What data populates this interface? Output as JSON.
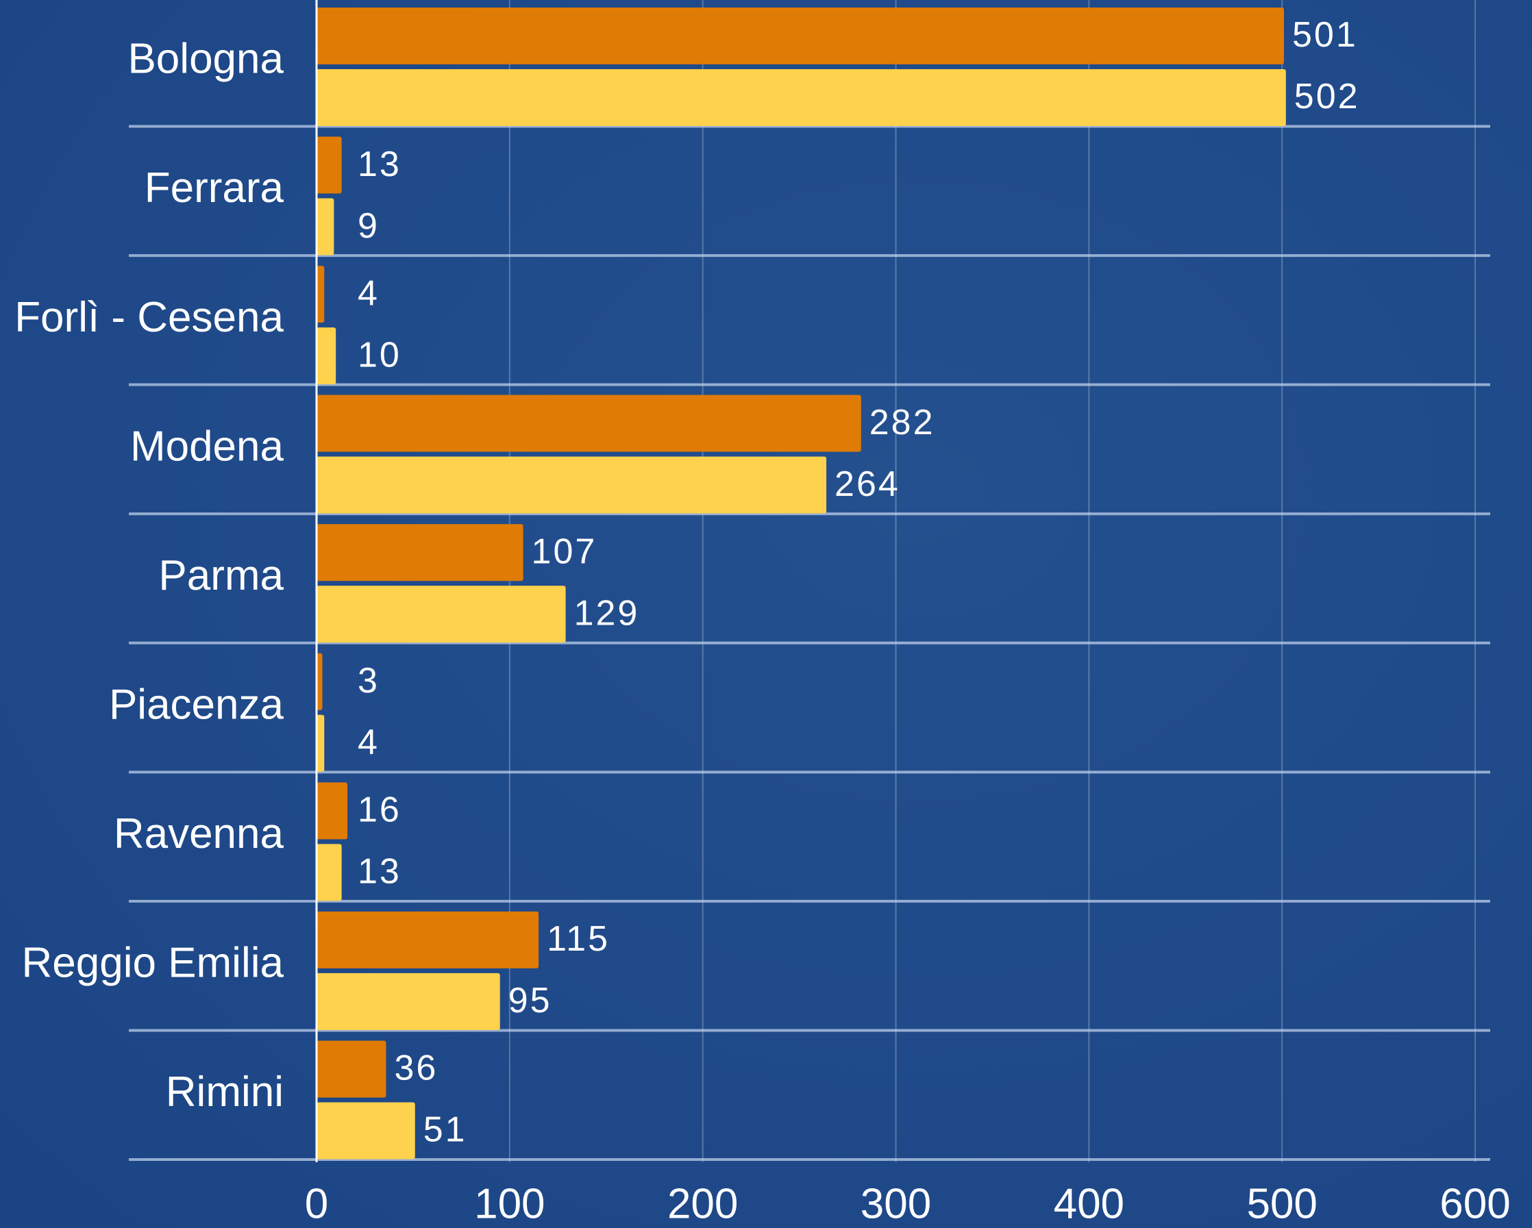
{
  "chart_data": {
    "type": "hbar",
    "categories": [
      "Bologna",
      "Ferrara",
      "Forlì - Cesena",
      "Modena",
      "Parma",
      "Piacenza",
      "Ravenna",
      "Reggio Emilia",
      "Rimini"
    ],
    "series": [
      {
        "color": "#e07b05",
        "values": [
          501,
          13,
          4,
          282,
          107,
          3,
          16,
          115,
          36
        ]
      },
      {
        "color": "#ffd24d",
        "values": [
          502,
          9,
          10,
          264,
          129,
          4,
          13,
          95,
          51
        ]
      }
    ],
    "xlim": [
      0,
      600
    ],
    "xticks": [
      0,
      100,
      200,
      300,
      400,
      500,
      600
    ],
    "grid": true
  }
}
